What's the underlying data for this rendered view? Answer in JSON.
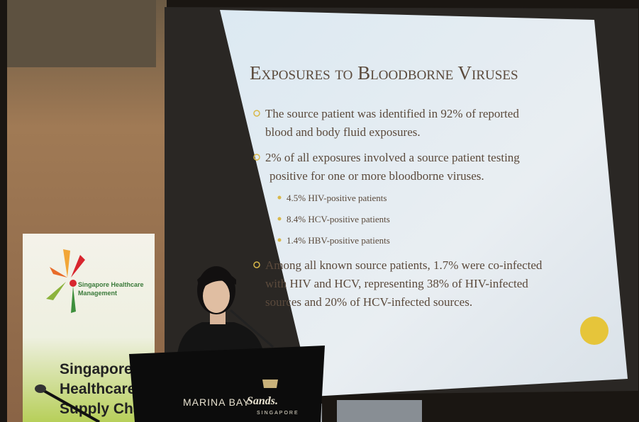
{
  "slide": {
    "title": "Exposures to Bloodborne Viruses",
    "bullets": [
      {
        "lines": [
          "The source patient was identified in 92% of reported",
          "blood and body fluid exposures."
        ]
      },
      {
        "lines": [
          "2% of all exposures involved a source patient testing",
          "positive for one or more bloodborne viruses."
        ],
        "subbullets": [
          "4.5% HIV-positive patients",
          "8.4% HCV-positive patients",
          "1.4% HBV-positive patients"
        ]
      },
      {
        "lines": [
          "Among all known source patients, 1.7% were co-infected",
          "with HIV and HCV, representing 38% of HIV-infected",
          "sources and 20% of HCV-infected sources."
        ]
      }
    ]
  },
  "banner": {
    "logo_text": [
      "Singapore Healthcare",
      "Management"
    ],
    "heading": [
      "Singapore",
      "Healthcare",
      "Supply Chain"
    ]
  },
  "podium": {
    "brand": "MARINA BAY",
    "logo": "Sands.",
    "location": "SINGAPORE"
  }
}
